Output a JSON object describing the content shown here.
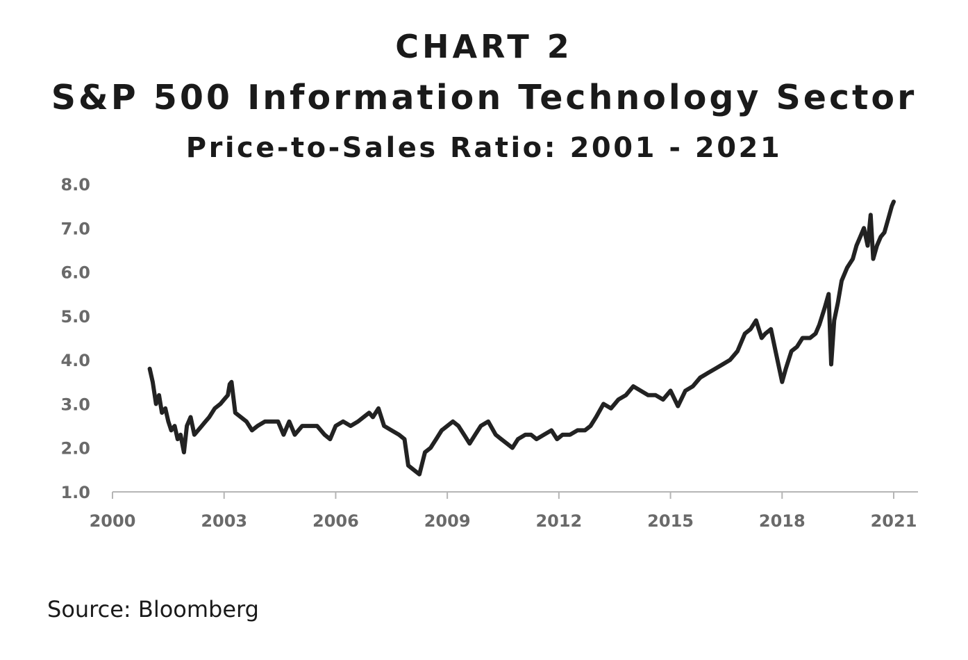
{
  "source": "Source: Bloomberg",
  "chart_data": {
    "type": "line",
    "label": "CHART 2",
    "title": "S&P 500 Information Technology Sector",
    "subtitle": "Price-to-Sales Ratio: 2001 - 2021",
    "xlabel": "",
    "ylabel": "",
    "xlim": [
      2000,
      2021.6
    ],
    "ylim": [
      1.0,
      8.0
    ],
    "x_ticks": [
      "2000",
      "2003",
      "2006",
      "2009",
      "2012",
      "2015",
      "2018",
      "2021"
    ],
    "y_ticks": [
      "1.0",
      "2.0",
      "3.0",
      "4.0",
      "5.0",
      "6.0",
      "7.0",
      "8.0"
    ],
    "grid": false,
    "legend": "none",
    "line_color": "#222222",
    "series": [
      {
        "x": [
          2001.0,
          2001.08,
          2001.17,
          2001.25,
          2001.33,
          2001.42,
          2001.5,
          2001.58,
          2001.67,
          2001.75,
          2001.83,
          2001.92,
          2002.0,
          2002.1,
          2002.2,
          2002.3,
          2002.4,
          2002.5,
          2002.6,
          2002.75,
          2002.9,
          2003.0,
          2003.1,
          2003.15,
          2003.2,
          2003.3,
          2003.45,
          2003.6,
          2003.75,
          2003.9,
          2004.1,
          2004.3,
          2004.45,
          2004.6,
          2004.75,
          2004.9,
          2005.1,
          2005.3,
          2005.5,
          2005.7,
          2005.85,
          2006.0,
          2006.2,
          2006.4,
          2006.6,
          2006.75,
          2006.9,
          2007.0,
          2007.15,
          2007.3,
          2007.5,
          2007.7,
          2007.85,
          2007.95,
          2008.1,
          2008.25,
          2008.4,
          2008.55,
          2008.7,
          2008.85,
          2009.0,
          2009.15,
          2009.3,
          2009.45,
          2009.6,
          2009.75,
          2009.9,
          2010.1,
          2010.3,
          2010.45,
          2010.6,
          2010.75,
          2010.9,
          2011.1,
          2011.25,
          2011.4,
          2011.6,
          2011.8,
          2011.95,
          2012.1,
          2012.3,
          2012.5,
          2012.7,
          2012.85,
          2013.0,
          2013.2,
          2013.4,
          2013.6,
          2013.8,
          2014.0,
          2014.2,
          2014.4,
          2014.6,
          2014.8,
          2015.0,
          2015.2,
          2015.4,
          2015.6,
          2015.8,
          2016.0,
          2016.2,
          2016.4,
          2016.6,
          2016.8,
          2017.0,
          2017.15,
          2017.3,
          2017.45,
          2017.55,
          2017.7,
          2017.85,
          2018.0,
          2018.1,
          2018.25,
          2018.4,
          2018.55,
          2018.75,
          2018.9,
          2019.0,
          2019.15,
          2019.25,
          2019.32,
          2019.4,
          2019.5,
          2019.6,
          2019.75,
          2019.9,
          2020.0,
          2020.1,
          2020.2,
          2020.3,
          2020.38,
          2020.45,
          2020.55,
          2020.65,
          2020.75,
          2020.85,
          2020.95,
          2021.0
        ],
        "values": [
          3.8,
          3.5,
          3.0,
          3.2,
          2.8,
          2.9,
          2.6,
          2.4,
          2.5,
          2.2,
          2.3,
          1.9,
          2.5,
          2.7,
          2.3,
          2.4,
          2.5,
          2.6,
          2.7,
          2.9,
          3.0,
          3.1,
          3.2,
          3.45,
          3.5,
          2.8,
          2.7,
          2.6,
          2.4,
          2.5,
          2.6,
          2.6,
          2.6,
          2.3,
          2.6,
          2.3,
          2.5,
          2.5,
          2.5,
          2.3,
          2.2,
          2.5,
          2.6,
          2.5,
          2.6,
          2.7,
          2.8,
          2.7,
          2.9,
          2.5,
          2.4,
          2.3,
          2.2,
          1.6,
          1.5,
          1.4,
          1.9,
          2.0,
          2.2,
          2.4,
          2.5,
          2.6,
          2.5,
          2.3,
          2.1,
          2.3,
          2.5,
          2.6,
          2.3,
          2.2,
          2.1,
          2.0,
          2.2,
          2.3,
          2.3,
          2.2,
          2.3,
          2.4,
          2.2,
          2.3,
          2.3,
          2.4,
          2.4,
          2.5,
          2.7,
          3.0,
          2.9,
          3.1,
          3.2,
          3.4,
          3.3,
          3.2,
          3.2,
          3.1,
          3.3,
          2.95,
          3.3,
          3.4,
          3.6,
          3.7,
          3.8,
          3.9,
          4.0,
          4.2,
          4.6,
          4.7,
          4.9,
          4.5,
          4.6,
          4.7,
          4.1,
          3.5,
          3.8,
          4.2,
          4.3,
          4.5,
          4.5,
          4.6,
          4.8,
          5.2,
          5.5,
          3.9,
          4.9,
          5.3,
          5.8,
          6.1,
          6.3,
          6.6,
          6.8,
          7.0,
          6.6,
          7.3,
          6.3,
          6.6,
          6.8,
          6.9,
          7.2,
          7.5,
          7.6
        ]
      }
    ]
  }
}
